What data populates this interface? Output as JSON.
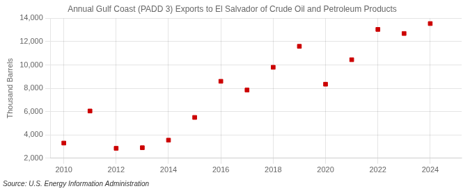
{
  "chart_data": {
    "type": "scatter",
    "title": "Annual Gulf Coast (PADD 3) Exports to El Salvador of Crude Oil and Petroleum Products",
    "y_label": "Thousand Barrels",
    "source": "Source: U.S. Energy Information Administration",
    "x": [
      2010,
      2011,
      2012,
      2013,
      2014,
      2015,
      2016,
      2017,
      2018,
      2019,
      2020,
      2021,
      2022,
      2023,
      2024
    ],
    "values": [
      3300,
      6050,
      2850,
      2900,
      3550,
      5500,
      8600,
      7850,
      9800,
      11600,
      8350,
      10450,
      13050,
      12700,
      13550
    ],
    "color": "#cc0000",
    "marker": "square",
    "xlim": [
      2009.5,
      2025.2
    ],
    "xticks": [
      2010,
      2012,
      2014,
      2016,
      2018,
      2020,
      2022,
      2024
    ],
    "ylim": [
      2000,
      14000
    ],
    "yticks": [
      {
        "value": 2000,
        "label": "2,000"
      },
      {
        "value": 4000,
        "label": "4,000"
      },
      {
        "value": 6000,
        "label": "6,000"
      },
      {
        "value": 8000,
        "label": "8,000"
      },
      {
        "value": 10000,
        "label": "10,000"
      },
      {
        "value": 12000,
        "label": "12,000"
      },
      {
        "value": 14000,
        "label": "14,000"
      }
    ],
    "grid": true
  }
}
